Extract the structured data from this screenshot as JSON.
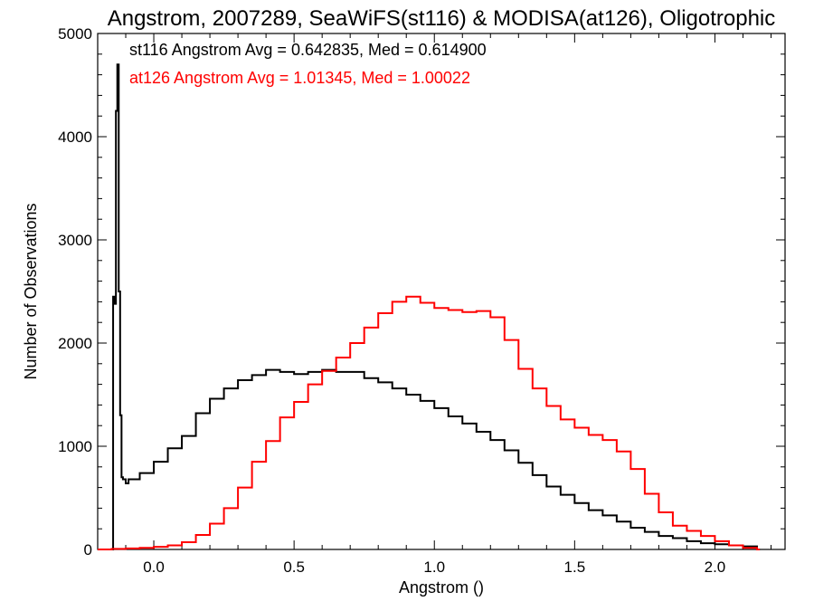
{
  "chart_data": {
    "type": "line",
    "title": "Angstrom, 2007289, SeaWiFS(st116) & MODISA(at126), Oligotrophic",
    "xlabel": "Angstrom ()",
    "ylabel": "Number of Observations",
    "xlim": [
      -0.2,
      2.25
    ],
    "ylim": [
      0,
      5000
    ],
    "xticks": [
      0.0,
      0.5,
      1.0,
      1.5,
      2.0
    ],
    "xtick_labels": [
      "0.0",
      "0.5",
      "1.0",
      "1.5",
      "2.0"
    ],
    "yticks": [
      0,
      1000,
      2000,
      3000,
      4000,
      5000
    ],
    "ytick_labels": [
      "0",
      "1000",
      "2000",
      "3000",
      "4000",
      "5000"
    ],
    "grid": false,
    "step_style": "histogram",
    "annotations": [
      {
        "text": "st116 Angstrom Avg = 0.642835, Med = 0.614900",
        "color": "#000000"
      },
      {
        "text": "at126 Angstrom Avg = 1.01345, Med = 1.00022",
        "color": "#ff0000"
      }
    ],
    "series": [
      {
        "color": "#000000",
        "x": [
          -0.15,
          -0.145,
          -0.14,
          -0.135,
          -0.13,
          -0.125,
          -0.12,
          -0.115,
          -0.11,
          -0.1,
          -0.09,
          -0.05,
          0.0,
          0.05,
          0.1,
          0.15,
          0.2,
          0.25,
          0.3,
          0.35,
          0.4,
          0.45,
          0.5,
          0.55,
          0.6,
          0.65,
          0.7,
          0.75,
          0.8,
          0.85,
          0.9,
          0.95,
          1.0,
          1.05,
          1.1,
          1.15,
          1.2,
          1.25,
          1.3,
          1.35,
          1.4,
          1.45,
          1.5,
          1.55,
          1.6,
          1.65,
          1.7,
          1.75,
          1.8,
          1.85,
          1.9,
          1.95,
          2.0,
          2.05,
          2.1,
          2.15
        ],
        "y": [
          0,
          2450,
          2380,
          4250,
          4700,
          2500,
          1300,
          700,
          680,
          640,
          680,
          740,
          850,
          980,
          1100,
          1320,
          1460,
          1560,
          1640,
          1690,
          1740,
          1720,
          1700,
          1720,
          1740,
          1720,
          1720,
          1660,
          1620,
          1560,
          1500,
          1440,
          1370,
          1290,
          1220,
          1140,
          1060,
          960,
          840,
          720,
          610,
          530,
          450,
          380,
          330,
          270,
          210,
          170,
          130,
          110,
          80,
          60,
          50,
          40,
          30,
          0
        ]
      },
      {
        "color": "#ff0000",
        "x": [
          -0.2,
          -0.15,
          -0.1,
          -0.05,
          0.0,
          0.05,
          0.1,
          0.15,
          0.2,
          0.25,
          0.3,
          0.35,
          0.4,
          0.45,
          0.5,
          0.55,
          0.6,
          0.65,
          0.7,
          0.75,
          0.8,
          0.85,
          0.9,
          0.95,
          1.0,
          1.05,
          1.1,
          1.15,
          1.2,
          1.25,
          1.3,
          1.35,
          1.4,
          1.45,
          1.5,
          1.55,
          1.6,
          1.65,
          1.7,
          1.75,
          1.8,
          1.85,
          1.9,
          1.95,
          2.0,
          2.05,
          2.1,
          2.15
        ],
        "y": [
          0,
          5,
          10,
          15,
          25,
          40,
          70,
          140,
          250,
          400,
          600,
          850,
          1050,
          1280,
          1430,
          1600,
          1730,
          1860,
          2000,
          2150,
          2290,
          2400,
          2450,
          2390,
          2340,
          2320,
          2300,
          2310,
          2250,
          2030,
          1750,
          1560,
          1390,
          1260,
          1180,
          1110,
          1060,
          950,
          780,
          540,
          360,
          230,
          180,
          130,
          80,
          40,
          15,
          0
        ]
      }
    ]
  }
}
